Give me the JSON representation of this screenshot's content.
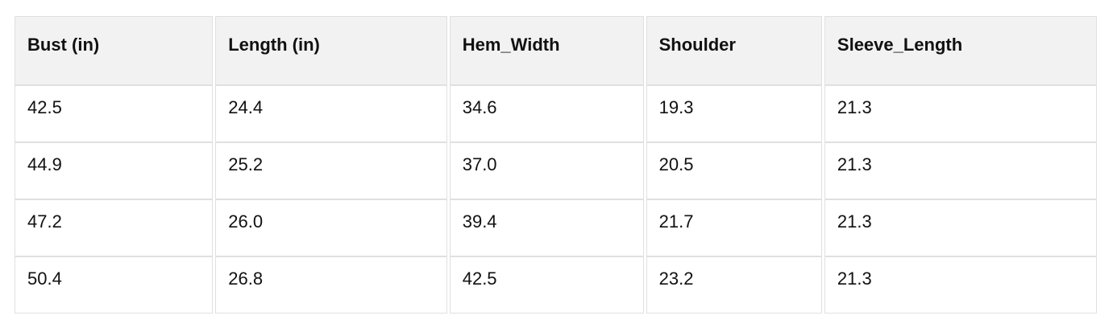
{
  "chart_data": {
    "type": "table",
    "columns": [
      "Bust (in)",
      "Length (in)",
      "Hem_Width",
      "Shoulder",
      "Sleeve_Length"
    ],
    "rows": [
      [
        "42.5",
        "24.4",
        "34.6",
        "19.3",
        "21.3"
      ],
      [
        "44.9",
        "25.2",
        "37.0",
        "20.5",
        "21.3"
      ],
      [
        "47.2",
        "26.0",
        "39.4",
        "21.7",
        "21.3"
      ],
      [
        "50.4",
        "26.8",
        "42.5",
        "23.2",
        "21.3"
      ]
    ]
  },
  "colors": {
    "header_bg": "#f2f2f2",
    "row_bg": "#ffffff",
    "border": "#e0e0e0",
    "text": "#111111",
    "page_bg": "#ffffff"
  }
}
